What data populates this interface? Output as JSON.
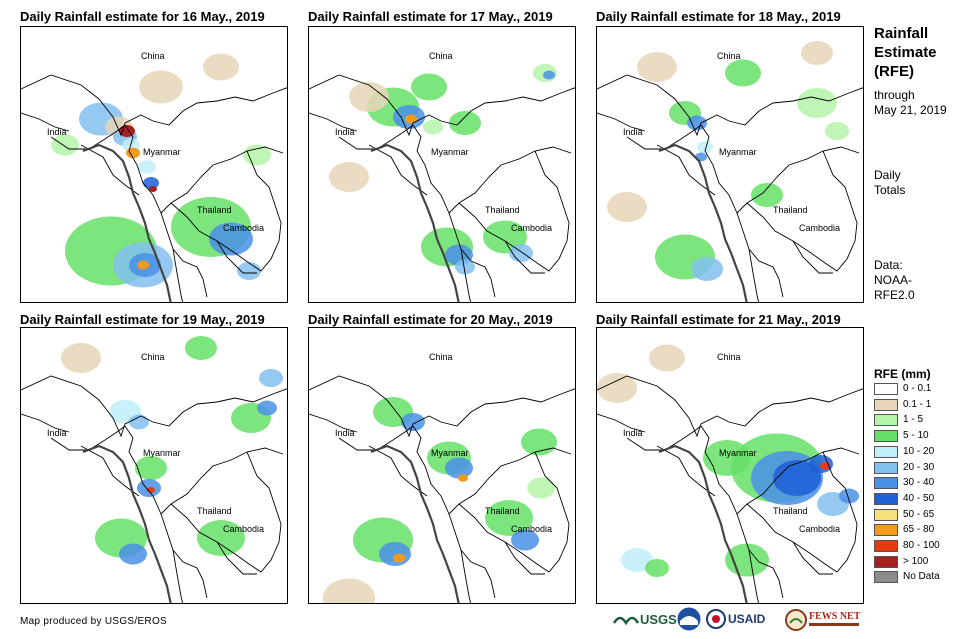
{
  "panels": [
    {
      "title": "Daily Rainfall estimate for 16 May., 2019",
      "labels": {
        "china": "China",
        "india": "India",
        "myanmar": "Myanmar",
        "thailand": "Thailand",
        "cambodia": "Cambodia"
      }
    },
    {
      "title": "Daily Rainfall estimate for 17 May., 2019",
      "labels": {
        "china": "China",
        "india": "India",
        "myanmar": "Myanmar",
        "thailand": "Thailand",
        "cambodia": "Cambodia"
      }
    },
    {
      "title": "Daily Rainfall estimate for 18 May., 2019",
      "labels": {
        "china": "China",
        "india": "India",
        "myanmar": "Myanmar",
        "thailand": "Thailand",
        "cambodia": "Cambodia"
      }
    },
    {
      "title": "Daily Rainfall estimate for 19 May., 2019",
      "labels": {
        "china": "China",
        "india": "India",
        "myanmar": "Myanmar",
        "thailand": "Thailand",
        "cambodia": "Cambodia"
      }
    },
    {
      "title": "Daily Rainfall estimate for 20 May., 2019",
      "labels": {
        "china": "China",
        "india": "India",
        "myanmar": "Myanmar",
        "thailand": "Thailand",
        "cambodia": "Cambodia"
      }
    },
    {
      "title": "Daily Rainfall estimate for 21 May., 2019",
      "labels": {
        "china": "China",
        "india": "India",
        "myanmar": "Myanmar",
        "thailand": "Thailand",
        "cambodia": "Cambodia"
      }
    }
  ],
  "sidebar": {
    "title_line1": "Rainfall",
    "title_line2": "Estimate",
    "title_line3": "(RFE)",
    "through": "through",
    "date": "May 21, 2019",
    "daily": "Daily",
    "totals": "Totals",
    "data_label": "Data:",
    "data_source_1": "NOAA-",
    "data_source_2": "RFE2.0"
  },
  "legend": {
    "title": "RFE (mm)",
    "items": [
      {
        "label": "0 - 0.1",
        "color": "#ffffff"
      },
      {
        "label": "0.1 - 1",
        "color": "#e6d5b8"
      },
      {
        "label": "1 - 5",
        "color": "#b5f5a8"
      },
      {
        "label": "5 - 10",
        "color": "#66e066"
      },
      {
        "label": "10 - 20",
        "color": "#bfeff8"
      },
      {
        "label": "20 - 30",
        "color": "#82c0f0"
      },
      {
        "label": "30 - 40",
        "color": "#4a90e6"
      },
      {
        "label": "40 - 50",
        "color": "#1f5fd8"
      },
      {
        "label": "50 - 65",
        "color": "#f7e07a"
      },
      {
        "label": "65 - 80",
        "color": "#f29a1c"
      },
      {
        "label": "80 - 100",
        "color": "#e83a10"
      },
      {
        "label": "> 100",
        "color": "#a81f1f"
      },
      {
        "label": "No Data",
        "color": "#8c8c8c"
      }
    ]
  },
  "footer": {
    "credit": "Map produced by USGS/EROS",
    "logo_usgs": "USGS",
    "logo_usaid": "USAID",
    "logo_fewsnet": "FEWS NET"
  }
}
